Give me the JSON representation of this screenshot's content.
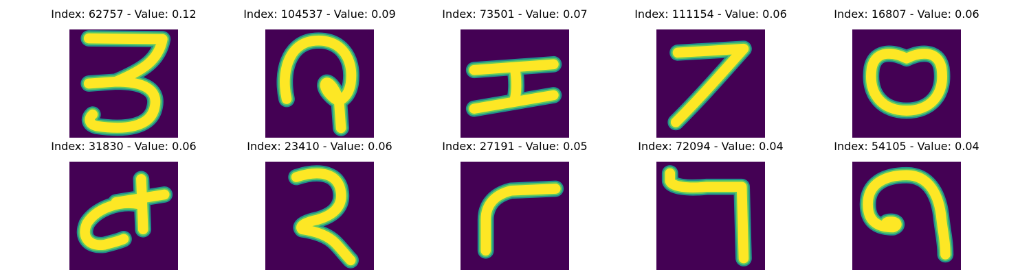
{
  "colors": {
    "background": "#440154",
    "stroke_edge": "#21918c",
    "stroke_mid": "#5ec962",
    "stroke_core": "#fde725"
  },
  "panels": [
    {
      "title": "Index: 62757 - Value: 0.12",
      "glyph": "digit-three-like"
    },
    {
      "title": "Index: 104537 - Value: 0.09",
      "glyph": "hooked-loop"
    },
    {
      "title": "Index: 73501 - Value: 0.07",
      "glyph": "i-beam"
    },
    {
      "title": "Index: 111154 - Value: 0.06",
      "glyph": "digit-seven"
    },
    {
      "title": "Index: 16807 - Value: 0.06",
      "glyph": "zero-oval"
    },
    {
      "title": "Index: 31830 - Value: 0.06",
      "glyph": "curl-with-cross"
    },
    {
      "title": "Index: 23410 - Value: 0.06",
      "glyph": "digit-two-like"
    },
    {
      "title": "Index: 27191 - Value: 0.05",
      "glyph": "corner-bracket"
    },
    {
      "title": "Index: 72094 - Value: 0.04",
      "glyph": "hook-seven"
    },
    {
      "title": "Index: 54105 - Value: 0.04",
      "glyph": "arch-curl"
    }
  ]
}
